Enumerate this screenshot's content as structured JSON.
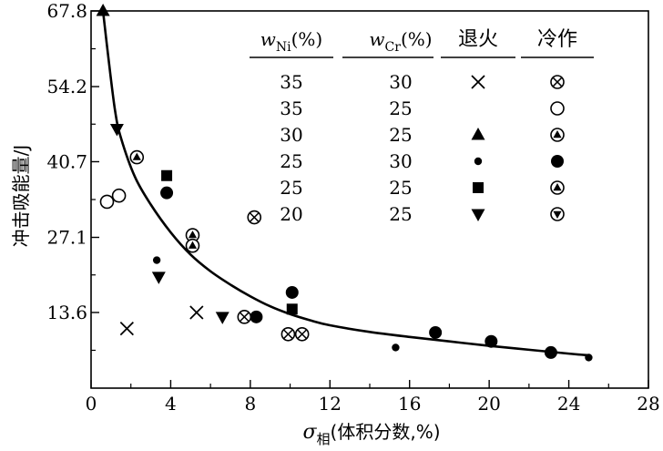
{
  "chart_data": {
    "type": "scatter",
    "xlabel_symbol": "σ",
    "xlabel_sub": "相",
    "xlabel_rest": "(体积分数,%)",
    "ylabel": "冲击吸能量/J",
    "xlim": [
      0,
      28
    ],
    "ylim": [
      0,
      67.8
    ],
    "x_ticks": [
      0,
      4,
      8,
      12,
      16,
      20,
      24,
      28
    ],
    "y_ticks": [
      13.6,
      27.1,
      40.7,
      54.2,
      67.8
    ],
    "legend": {
      "headers": {
        "ni_symbol": "w",
        "ni_sub": "Ni",
        "ni_unit": "(%)",
        "cr_symbol": "w",
        "cr_sub": "Cr",
        "cr_unit": "(%)",
        "annealed": "退火",
        "cold_worked": "冷作"
      },
      "rows": [
        {
          "ni": "35",
          "cr": "30",
          "annealed_marker": "cross",
          "cold_marker": "circle-x"
        },
        {
          "ni": "35",
          "cr": "25",
          "annealed_marker": "",
          "cold_marker": "circle-open"
        },
        {
          "ni": "30",
          "cr": "25",
          "annealed_marker": "triangle-up",
          "cold_marker": "circle-triangle-up"
        },
        {
          "ni": "25",
          "cr": "30",
          "annealed_marker": "dot-small",
          "cold_marker": "circle-filled"
        },
        {
          "ni": "25",
          "cr": "25",
          "annealed_marker": "square",
          "cold_marker": "circle-triangle-up"
        },
        {
          "ni": "20",
          "cr": "25",
          "annealed_marker": "triangle-down",
          "cold_marker": "circle-triangle-down"
        }
      ]
    },
    "series": [
      {
        "marker": "triangle-up",
        "points": [
          [
            0.6,
            67.8
          ]
        ]
      },
      {
        "marker": "triangle-down",
        "points": [
          [
            1.3,
            46.6
          ],
          [
            3.4,
            20.0
          ],
          [
            6.6,
            12.8
          ]
        ]
      },
      {
        "marker": "circle-triangle-up",
        "points": [
          [
            2.3,
            41.5
          ],
          [
            5.1,
            27.5
          ],
          [
            5.1,
            25.6
          ]
        ]
      },
      {
        "marker": "square",
        "points": [
          [
            3.8,
            38.2
          ],
          [
            10.1,
            14.2
          ]
        ]
      },
      {
        "marker": "circle-filled",
        "points": [
          [
            3.8,
            35.1
          ],
          [
            8.3,
            12.8
          ],
          [
            10.1,
            17.2
          ],
          [
            17.3,
            10.0
          ],
          [
            20.1,
            8.4
          ],
          [
            23.1,
            6.4
          ]
        ]
      },
      {
        "marker": "circle-open",
        "points": [
          [
            0.8,
            33.5
          ],
          [
            1.4,
            34.6
          ]
        ]
      },
      {
        "marker": "circle-x",
        "points": [
          [
            8.2,
            30.7
          ],
          [
            7.7,
            12.8
          ],
          [
            9.9,
            9.7
          ],
          [
            10.6,
            9.7
          ]
        ]
      },
      {
        "marker": "dot-small",
        "points": [
          [
            3.3,
            23.0
          ],
          [
            15.3,
            7.3
          ],
          [
            25.0,
            5.5
          ]
        ]
      },
      {
        "marker": "cross",
        "points": [
          [
            1.8,
            10.7
          ],
          [
            5.3,
            13.6
          ]
        ]
      }
    ],
    "fit_curve": [
      [
        0.6,
        67.8
      ],
      [
        0.85,
        60.0
      ],
      [
        1.2,
        50.0
      ],
      [
        1.5,
        45.0
      ],
      [
        2.2,
        38.0
      ],
      [
        3.0,
        33.0
      ],
      [
        4.0,
        28.0
      ],
      [
        5.0,
        24.0
      ],
      [
        6.0,
        21.0
      ],
      [
        7.0,
        18.6
      ],
      [
        8.0,
        16.5
      ],
      [
        9.0,
        14.7
      ],
      [
        10.0,
        13.3
      ],
      [
        11.0,
        12.2
      ],
      [
        12.0,
        11.3
      ],
      [
        14.0,
        10.1
      ],
      [
        16.0,
        9.2
      ],
      [
        18.0,
        8.4
      ],
      [
        20.0,
        7.6
      ],
      [
        22.0,
        6.9
      ],
      [
        24.0,
        6.2
      ],
      [
        25.0,
        5.9
      ]
    ]
  }
}
